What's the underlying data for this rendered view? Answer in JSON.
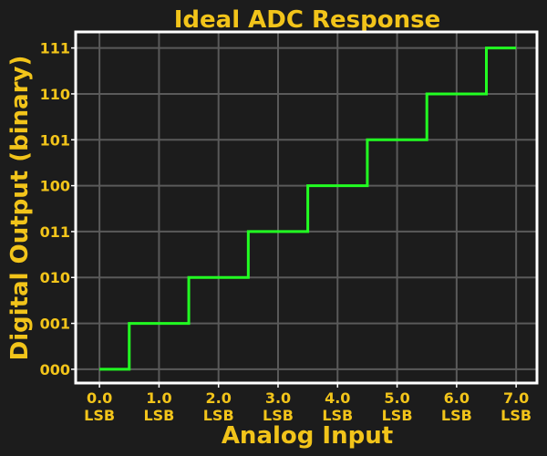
{
  "chart_data": {
    "type": "line",
    "title": "Ideal ADC Response",
    "xlabel": "Analog Input",
    "ylabel": "Digital Output (binary)",
    "x_ticks": [
      "0.0\nLSB",
      "1.0\nLSB",
      "2.0\nLSB",
      "3.0\nLSB",
      "4.0\nLSB",
      "5.0\nLSB",
      "6.0\nLSB",
      "7.0\nLSB"
    ],
    "x_tick_values": [
      0,
      1,
      2,
      3,
      4,
      5,
      6,
      7
    ],
    "y_ticks": [
      "000",
      "001",
      "010",
      "011",
      "100",
      "101",
      "110",
      "111"
    ],
    "y_tick_values": [
      0,
      1,
      2,
      3,
      4,
      5,
      6,
      7
    ],
    "xlim": [
      -0.4,
      7.35
    ],
    "ylim": [
      -0.3,
      7.35
    ],
    "grid": true,
    "series": [
      {
        "step": "mid",
        "x": [
          0,
          1,
          2,
          3,
          4,
          5,
          6,
          7
        ],
        "y": [
          0,
          1,
          2,
          3,
          4,
          5,
          6,
          7
        ],
        "color": "#22ff22"
      }
    ],
    "colors": {
      "background": "#1c1c1c",
      "text": "#f2c41a",
      "frame": "#ffffff",
      "grid": "#5a5a5a"
    }
  }
}
